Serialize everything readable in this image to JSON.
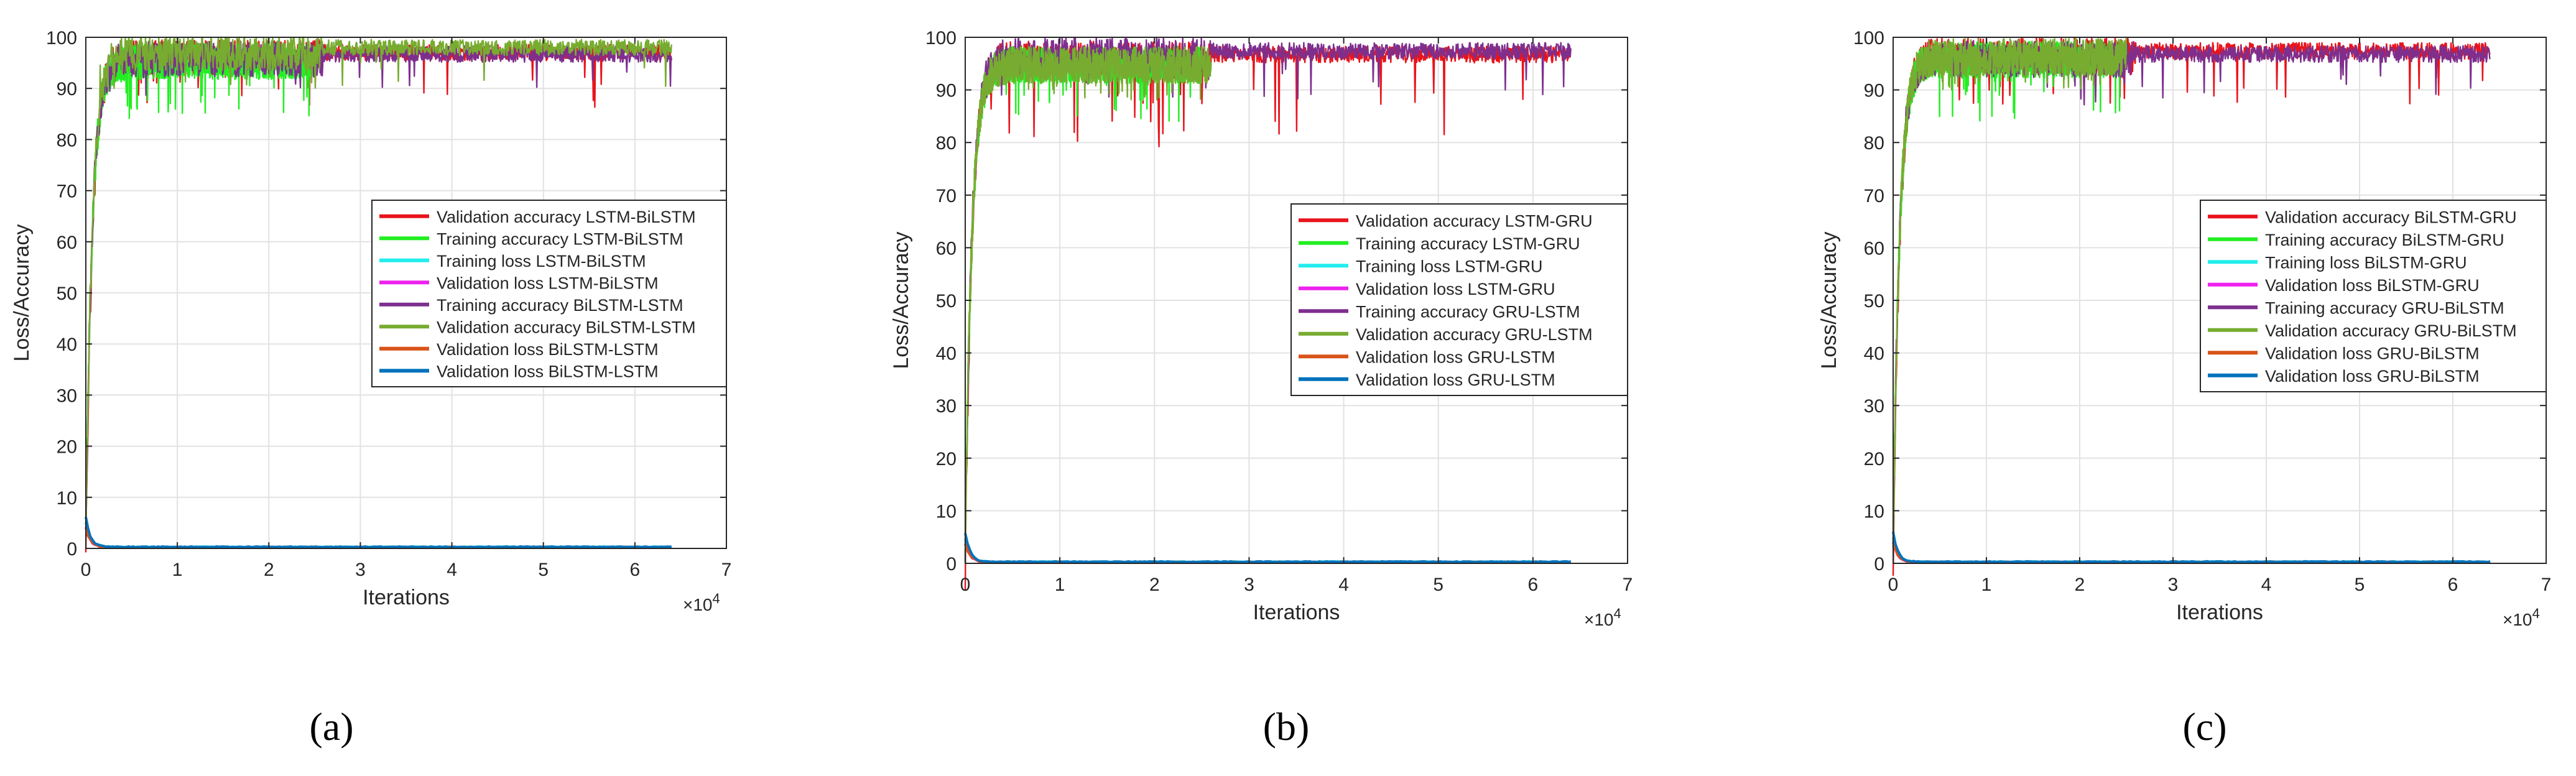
{
  "chart_data": [
    {
      "type": "line",
      "caption": "(a)",
      "xlabel": "Iterations",
      "ylabel": "Loss/Accuracy",
      "xlim": [
        0,
        70000
      ],
      "ylim": [
        0,
        100
      ],
      "x_ticks": [
        0,
        1,
        2,
        3,
        4,
        5,
        6,
        7
      ],
      "x_multiplier": "×10",
      "x_multiplier_exp": "4",
      "y_ticks": [
        0,
        10,
        20,
        30,
        40,
        50,
        60,
        70,
        80,
        90,
        100
      ],
      "grid": true,
      "legend_position": "middle-right",
      "series": [
        {
          "name": "Validation accuracy LSTM-BiLSTM",
          "color": "#e8141c",
          "kind": "accuracy",
          "end_x": 64000,
          "start": 0,
          "plateau": 97.8,
          "min": 86
        },
        {
          "name": "Training accuracy LSTM-BiLSTM",
          "color": "#22ee22",
          "kind": "accuracy",
          "end_x": 25000,
          "start": 5,
          "plateau": 97.0,
          "min": 84
        },
        {
          "name": "Training loss LSTM-BiLSTM",
          "color": "#22eeee",
          "kind": "loss",
          "end_x": 64000,
          "start": 5,
          "plateau": 0.3
        },
        {
          "name": "Validation loss LSTM-BiLSTM",
          "color": "#ee22ee",
          "kind": "loss",
          "end_x": 64000,
          "start": 4,
          "plateau": 0.2
        },
        {
          "name": "Training accuracy BiLSTM-LSTM",
          "color": "#7e2f8e",
          "kind": "accuracy",
          "end_x": 64000,
          "start": 5,
          "plateau": 97.5,
          "min": 88
        },
        {
          "name": "Validation accuracy BiLSTM-LSTM",
          "color": "#77ac30",
          "kind": "accuracy",
          "end_x": 64000,
          "start": 5,
          "plateau": 98.8,
          "min": 90
        },
        {
          "name": "Validation loss BiLSTM-LSTM",
          "color": "#d95319",
          "kind": "loss",
          "end_x": 64000,
          "start": 4,
          "plateau": 0.25
        },
        {
          "name": "Validation loss BiLSTM-LSTM",
          "color": "#0072bd",
          "kind": "loss",
          "end_x": 64000,
          "start": 6,
          "plateau": 0.3
        }
      ]
    },
    {
      "type": "line",
      "caption": "(b)",
      "xlabel": "Iterations",
      "ylabel": "Loss/Accuracy",
      "xlim": [
        0,
        70000
      ],
      "ylim": [
        0,
        100
      ],
      "x_ticks": [
        0,
        1,
        2,
        3,
        4,
        5,
        6,
        7
      ],
      "x_multiplier": "×10",
      "x_multiplier_exp": "4",
      "y_ticks": [
        0,
        10,
        20,
        30,
        40,
        50,
        60,
        70,
        80,
        90,
        100
      ],
      "grid": true,
      "legend_position": "middle-right",
      "series": [
        {
          "name": "Validation accuracy LSTM-GRU",
          "color": "#e8141c",
          "kind": "accuracy",
          "end_x": 64000,
          "start": 0,
          "plateau": 97.5,
          "min": 79
        },
        {
          "name": "Training accuracy LSTM-GRU",
          "color": "#22ee22",
          "kind": "accuracy",
          "end_x": 25000,
          "start": 5,
          "plateau": 96.5,
          "min": 84
        },
        {
          "name": "Training loss LSTM-GRU",
          "color": "#22eeee",
          "kind": "loss",
          "end_x": 64000,
          "start": 5,
          "plateau": 0.3
        },
        {
          "name": "Validation loss LSTM-GRU",
          "color": "#ee22ee",
          "kind": "loss",
          "end_x": 64000,
          "start": 4,
          "plateau": 0.2
        },
        {
          "name": "Training accuracy GRU-LSTM",
          "color": "#7e2f8e",
          "kind": "accuracy",
          "end_x": 64000,
          "start": 5,
          "plateau": 98.2,
          "min": 88
        },
        {
          "name": "Validation accuracy GRU-LSTM",
          "color": "#77ac30",
          "kind": "accuracy",
          "end_x": 26000,
          "start": 5,
          "plateau": 96.5,
          "min": 88
        },
        {
          "name": "Validation loss GRU-LSTM",
          "color": "#d95319",
          "kind": "loss",
          "end_x": 64000,
          "start": 4,
          "plateau": 0.25
        },
        {
          "name": "Validation loss GRU-LSTM",
          "color": "#0072bd",
          "kind": "loss",
          "end_x": 64000,
          "start": 6,
          "plateau": 0.3
        }
      ]
    },
    {
      "type": "line",
      "caption": "(c)",
      "xlabel": "Iterations",
      "ylabel": "Loss/Accuracy",
      "xlim": [
        0,
        70000
      ],
      "ylim": [
        0,
        100
      ],
      "x_ticks": [
        0,
        1,
        2,
        3,
        4,
        5,
        6,
        7
      ],
      "x_multiplier": "×10",
      "x_multiplier_exp": "4",
      "y_ticks": [
        0,
        10,
        20,
        30,
        40,
        50,
        60,
        70,
        80,
        90,
        100
      ],
      "grid": true,
      "legend_position": "middle-right",
      "series": [
        {
          "name": "Validation accuracy BiLSTM-GRU",
          "color": "#e8141c",
          "kind": "accuracy",
          "end_x": 64000,
          "start": 0,
          "plateau": 98.2,
          "min": 87
        },
        {
          "name": "Training accuracy BiLSTM-GRU",
          "color": "#22ee22",
          "kind": "accuracy",
          "end_x": 25000,
          "start": 5,
          "plateau": 97.5,
          "min": 84
        },
        {
          "name": "Training loss BiLSTM-GRU",
          "color": "#22eeee",
          "kind": "loss",
          "end_x": 64000,
          "start": 5,
          "plateau": 0.3
        },
        {
          "name": "Validation loss BiLSTM-GRU",
          "color": "#ee22ee",
          "kind": "loss",
          "end_x": 64000,
          "start": 4,
          "plateau": 0.2
        },
        {
          "name": "Training accuracy GRU-BiLSTM",
          "color": "#7e2f8e",
          "kind": "accuracy",
          "end_x": 64000,
          "start": 5,
          "plateau": 97.6,
          "min": 87
        },
        {
          "name": "Validation accuracy GRU-BiLSTM",
          "color": "#77ac30",
          "kind": "accuracy",
          "end_x": 25000,
          "start": 5,
          "plateau": 98.0,
          "min": 90
        },
        {
          "name": "Validation loss GRU-BiLSTM",
          "color": "#d95319",
          "kind": "loss",
          "end_x": 64000,
          "start": 4,
          "plateau": 0.25
        },
        {
          "name": "Validation loss GRU-BiLSTM",
          "color": "#0072bd",
          "kind": "loss",
          "end_x": 64000,
          "start": 6,
          "plateau": 0.3
        }
      ]
    }
  ]
}
